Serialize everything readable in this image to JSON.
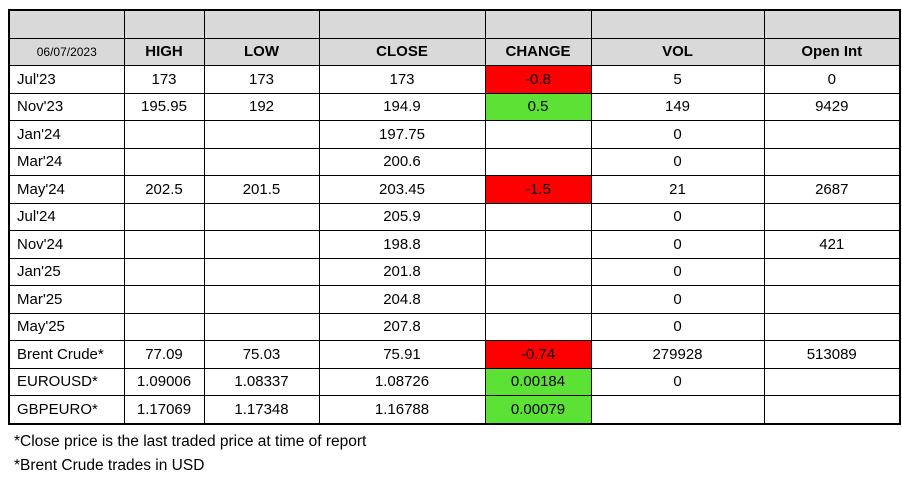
{
  "table": {
    "date_header": "06/07/2023",
    "columns": [
      "HIGH",
      "LOW",
      "CLOSE",
      "CHANGE",
      "VOL",
      "Open Int"
    ],
    "rows": [
      {
        "label": "Jul'23",
        "high": "173",
        "low": "173",
        "close": "173",
        "change": "-0.8",
        "change_state": "negative",
        "vol": "5",
        "open_int": "0"
      },
      {
        "label": "Nov'23",
        "high": "195.95",
        "low": "192",
        "close": "194.9",
        "change": "0.5",
        "change_state": "positive",
        "vol": "149",
        "open_int": "9429"
      },
      {
        "label": "Jan'24",
        "high": "",
        "low": "",
        "close": "197.75",
        "change": "",
        "change_state": "none",
        "vol": "0",
        "open_int": ""
      },
      {
        "label": "Mar'24",
        "high": "",
        "low": "",
        "close": "200.6",
        "change": "",
        "change_state": "none",
        "vol": "0",
        "open_int": ""
      },
      {
        "label": "May'24",
        "high": "202.5",
        "low": "201.5",
        "close": "203.45",
        "change": "-1.5",
        "change_state": "negative",
        "vol": "21",
        "open_int": "2687"
      },
      {
        "label": "Jul'24",
        "high": "",
        "low": "",
        "close": "205.9",
        "change": "",
        "change_state": "none",
        "vol": "0",
        "open_int": ""
      },
      {
        "label": "Nov'24",
        "high": "",
        "low": "",
        "close": "198.8",
        "change": "",
        "change_state": "none",
        "vol": "0",
        "open_int": "421"
      },
      {
        "label": "Jan'25",
        "high": "",
        "low": "",
        "close": "201.8",
        "change": "",
        "change_state": "none",
        "vol": "0",
        "open_int": ""
      },
      {
        "label": "Mar'25",
        "high": "",
        "low": "",
        "close": "204.8",
        "change": "",
        "change_state": "none",
        "vol": "0",
        "open_int": ""
      },
      {
        "label": "May'25",
        "high": "",
        "low": "",
        "close": "207.8",
        "change": "",
        "change_state": "none",
        "vol": "0",
        "open_int": ""
      },
      {
        "label": "Brent Crude*",
        "high": "77.09",
        "low": "75.03",
        "close": "75.91",
        "change": "-0.74",
        "change_state": "negative",
        "vol": "279928",
        "open_int": "513089"
      },
      {
        "label": "EUROUSD*",
        "high": "1.09006",
        "low": "1.08337",
        "close": "1.08726",
        "change": "0.00184",
        "change_state": "positive",
        "vol": "0",
        "open_int": ""
      },
      {
        "label": "GBPEURO*",
        "high": "1.17069",
        "low": "1.17348",
        "close": "1.16788",
        "change": "0.00079",
        "change_state": "positive",
        "vol": "",
        "open_int": ""
      }
    ]
  },
  "footnotes": [
    "*Close price is the last traded price at time of report",
    "*Brent Crude trades in USD"
  ],
  "colors": {
    "header_bg": "#D9D9D9",
    "negative_bg": "#FF0000",
    "positive_bg": "#5BE234",
    "border": "#000000"
  }
}
